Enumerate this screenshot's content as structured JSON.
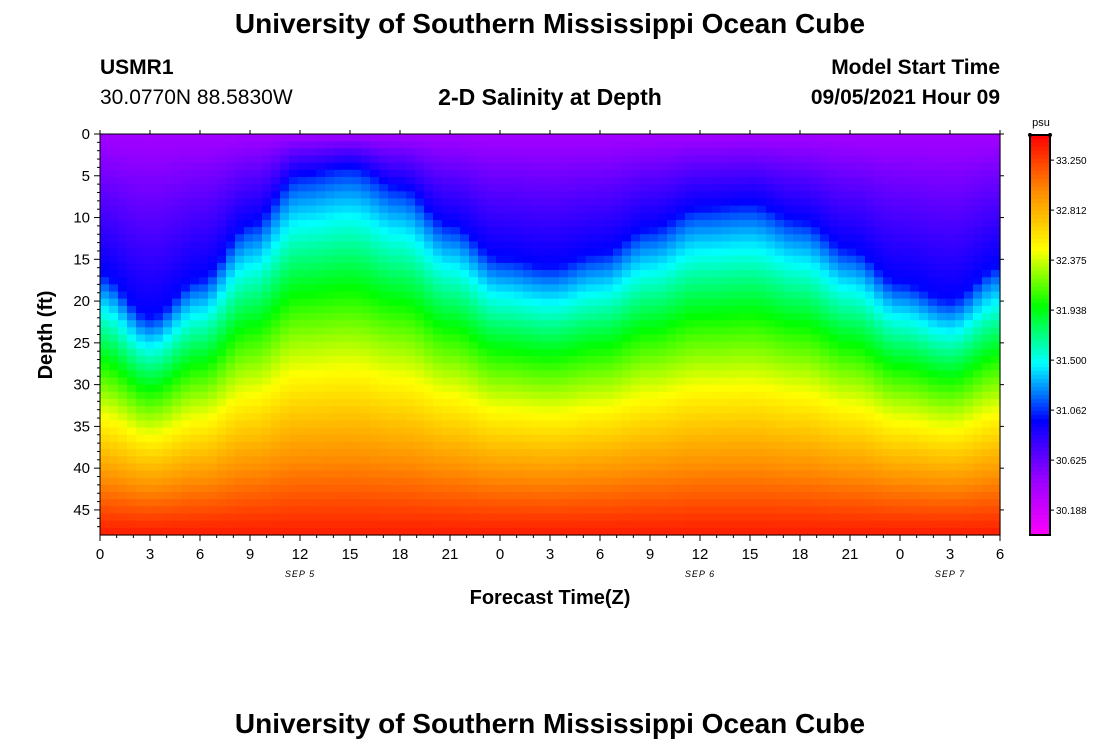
{
  "page": {
    "title_top": "University of Southern Mississippi Ocean Cube",
    "title_bottom": "University of Southern Mississippi Ocean Cube",
    "station_id": "USMR1",
    "station_coords": "30.0770N  88.5830W",
    "model_start_label": "Model Start Time",
    "model_start_value": "09/05/2021 Hour 09"
  },
  "chart_data": {
    "type": "heatmap",
    "title": "2-D Salinity at Depth",
    "xlabel": "Forecast Time(Z)",
    "ylabel": "Depth (ft)",
    "x_ticks": [
      "0",
      "3",
      "6",
      "9",
      "12",
      "15",
      "18",
      "21",
      "0",
      "3",
      "6",
      "9",
      "12",
      "15",
      "18",
      "21",
      "0",
      "3",
      "6"
    ],
    "x_range_hours": [
      0,
      54
    ],
    "date_labels": [
      {
        "text": "SEP 5",
        "hour": 12
      },
      {
        "text": "SEP 6",
        "hour": 36
      },
      {
        "text": "SEP 7",
        "hour": 51
      }
    ],
    "y_ticks": [
      0,
      5,
      10,
      15,
      20,
      25,
      30,
      35,
      40,
      45
    ],
    "ylim": [
      0,
      48
    ],
    "y_inverted": true,
    "colorbar": {
      "unit": "psu",
      "min": 29.97,
      "max": 33.47,
      "tick_labels": [
        "33.250",
        "32.812",
        "32.375",
        "31.938",
        "31.500",
        "31.062",
        "30.625",
        "30.188"
      ],
      "tick_values": [
        33.25,
        32.8125,
        32.375,
        31.9375,
        31.5,
        31.0625,
        30.625,
        30.1875
      ],
      "colors": [
        "#ff00ff",
        "#9400ff",
        "#0000ff",
        "#00ffff",
        "#00ff00",
        "#ffff00",
        "#ff8c00",
        "#ff0000"
      ]
    },
    "halocline_depth_ft": [
      {
        "hour": 0,
        "depth": 26.0
      },
      {
        "hour": 3,
        "depth": 31.0
      },
      {
        "hour": 6,
        "depth": 26.5
      },
      {
        "hour": 9,
        "depth": 20.0
      },
      {
        "hour": 12,
        "depth": 14.0
      },
      {
        "hour": 15,
        "depth": 13.0
      },
      {
        "hour": 18,
        "depth": 15.5
      },
      {
        "hour": 21,
        "depth": 20.0
      },
      {
        "hour": 24,
        "depth": 24.0
      },
      {
        "hour": 27,
        "depth": 25.0
      },
      {
        "hour": 30,
        "depth": 23.5
      },
      {
        "hour": 33,
        "depth": 20.5
      },
      {
        "hour": 36,
        "depth": 18.0
      },
      {
        "hour": 39,
        "depth": 17.5
      },
      {
        "hour": 42,
        "depth": 19.5
      },
      {
        "hour": 45,
        "depth": 23.0
      },
      {
        "hour": 48,
        "depth": 27.0
      },
      {
        "hour": 51,
        "depth": 29.0
      },
      {
        "hour": 54,
        "depth": 25.0
      }
    ],
    "surface_salinity_psu": 30.4,
    "bottom_salinity_psu": 33.35
  }
}
